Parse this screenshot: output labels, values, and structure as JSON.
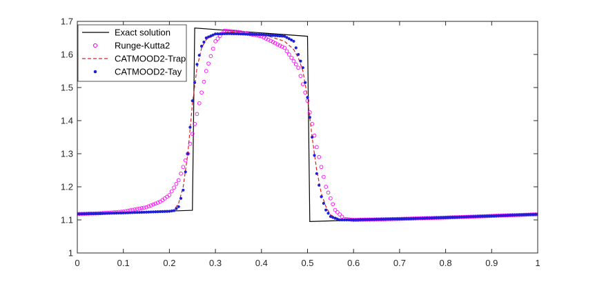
{
  "chart_data": {
    "type": "line",
    "title": "",
    "xlabel": "",
    "ylabel": "",
    "xlim": [
      0,
      1
    ],
    "ylim": [
      1,
      1.7
    ],
    "xticks": [
      "0",
      "0.1",
      "0.2",
      "0.3",
      "0.4",
      "0.5",
      "0.6",
      "0.7",
      "0.8",
      "0.9",
      "1"
    ],
    "yticks": [
      "1",
      "1.1",
      "1.2",
      "1.3",
      "1.4",
      "1.5",
      "1.6",
      "1.7"
    ],
    "grid": false,
    "legend_position": "top-left",
    "series": [
      {
        "name": "Exact solution",
        "style": "solid-line",
        "color": "#000000",
        "x": [
          0,
          0.25,
          0.255,
          0.5,
          0.505,
          1
        ],
        "y": [
          1.117,
          1.129,
          1.68,
          1.655,
          1.095,
          1.117
        ]
      },
      {
        "name": "Runge-Kutta2",
        "style": "open-circle",
        "color": "#ff00ff",
        "x": [
          0,
          0.05,
          0.1,
          0.15,
          0.18,
          0.2,
          0.22,
          0.24,
          0.26,
          0.28,
          0.3,
          0.32,
          0.35,
          0.4,
          0.45,
          0.48,
          0.5,
          0.52,
          0.54,
          0.56,
          0.58,
          0.6,
          0.7,
          0.8,
          0.9,
          1
        ],
        "y": [
          1.118,
          1.12,
          1.125,
          1.138,
          1.155,
          1.175,
          1.22,
          1.3,
          1.42,
          1.55,
          1.64,
          1.672,
          1.668,
          1.655,
          1.62,
          1.56,
          1.46,
          1.32,
          1.2,
          1.13,
          1.103,
          1.1,
          1.103,
          1.107,
          1.112,
          1.117
        ]
      },
      {
        "name": "CATMOOD2-Trap",
        "style": "dashed-line",
        "color": "#d62020",
        "x": [
          0,
          0.1,
          0.2,
          0.21,
          0.22,
          0.23,
          0.24,
          0.25,
          0.26,
          0.27,
          0.28,
          0.3,
          0.33,
          0.4,
          0.45,
          0.47,
          0.48,
          0.49,
          0.5,
          0.51,
          0.52,
          0.53,
          0.54,
          0.55,
          0.57,
          0.6,
          0.7,
          0.8,
          0.9,
          1
        ],
        "y": [
          1.118,
          1.121,
          1.127,
          1.13,
          1.15,
          1.2,
          1.3,
          1.45,
          1.56,
          1.62,
          1.645,
          1.66,
          1.668,
          1.662,
          1.64,
          1.615,
          1.59,
          1.55,
          1.47,
          1.35,
          1.25,
          1.18,
          1.14,
          1.115,
          1.102,
          1.1,
          1.103,
          1.107,
          1.112,
          1.117
        ]
      },
      {
        "name": "CATMOOD2-Tay",
        "style": "filled-dot",
        "color": "#1f1fd6",
        "x": [
          0,
          0.1,
          0.2,
          0.21,
          0.22,
          0.23,
          0.24,
          0.25,
          0.26,
          0.27,
          0.28,
          0.3,
          0.33,
          0.4,
          0.45,
          0.47,
          0.48,
          0.49,
          0.5,
          0.51,
          0.52,
          0.53,
          0.54,
          0.55,
          0.57,
          0.6,
          0.7,
          0.8,
          0.9,
          1
        ],
        "y": [
          1.118,
          1.121,
          1.126,
          1.128,
          1.14,
          1.19,
          1.3,
          1.46,
          1.57,
          1.625,
          1.65,
          1.662,
          1.663,
          1.66,
          1.655,
          1.64,
          1.6,
          1.56,
          1.47,
          1.35,
          1.24,
          1.17,
          1.13,
          1.11,
          1.1,
          1.1,
          1.103,
          1.107,
          1.112,
          1.117
        ]
      }
    ]
  }
}
